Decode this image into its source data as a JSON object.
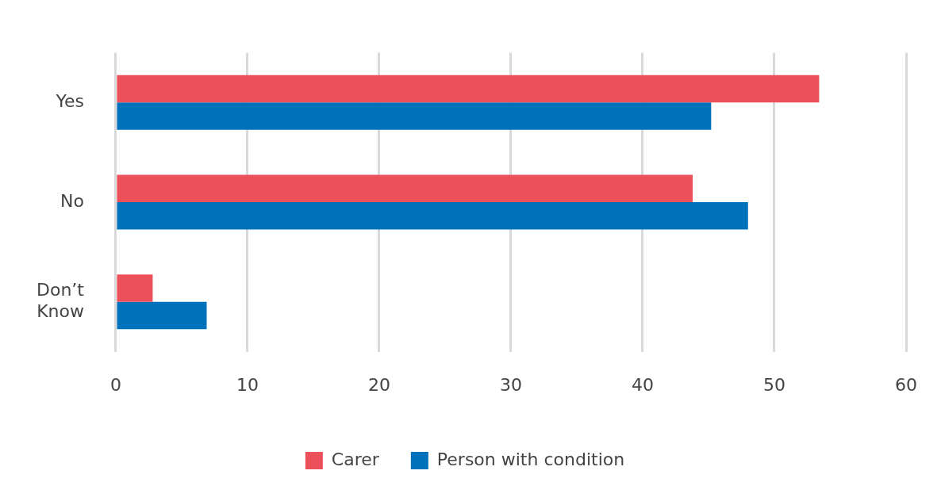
{
  "chart_data": {
    "type": "bar",
    "orientation": "horizontal",
    "categories": [
      "Yes",
      "No",
      "Don’t Know"
    ],
    "series": [
      {
        "name": "Carer",
        "color": "#eb505b",
        "values": [
          53.4,
          43.8,
          2.8
        ]
      },
      {
        "name": "Person with condition",
        "color": "#0071bb",
        "values": [
          45.2,
          48.0,
          6.9
        ]
      }
    ],
    "xlim": [
      0,
      60
    ],
    "xticks": [
      0,
      10,
      20,
      30,
      40,
      50,
      60
    ],
    "grid": "x",
    "legend": "bottom"
  }
}
